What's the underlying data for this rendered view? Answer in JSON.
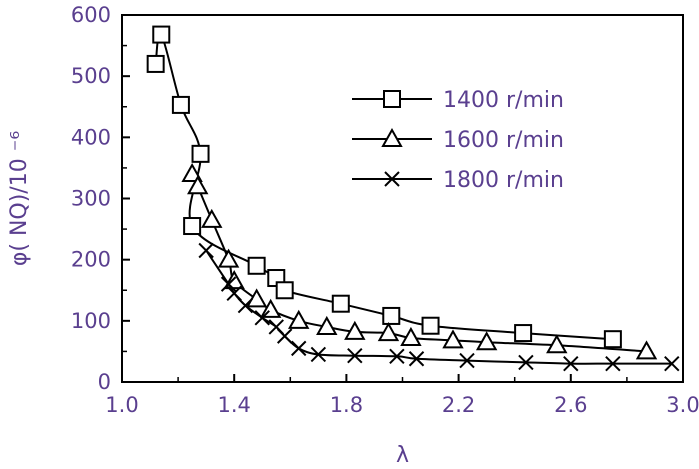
{
  "chart_data": {
    "type": "line",
    "xlabel": "λ",
    "ylabel": "φ( NQ)/10 ⁻⁶",
    "xlim": [
      1.0,
      3.0
    ],
    "ylim": [
      0,
      600
    ],
    "x_ticks": [
      "1.0",
      "1.4",
      "1.8",
      "2.2",
      "2.6",
      "3.0"
    ],
    "y_ticks": [
      "0",
      "100",
      "200",
      "300",
      "400",
      "500",
      "600"
    ],
    "legend_position": "top-right",
    "grid": false,
    "series": [
      {
        "name": "1400 r/min",
        "marker": "square",
        "x": [
          1.12,
          1.14,
          1.21,
          1.28,
          1.25,
          1.48,
          1.55,
          1.58,
          1.78,
          1.96,
          2.1,
          2.43,
          2.75
        ],
        "y": [
          520,
          568,
          453,
          373,
          255,
          190,
          170,
          150,
          128,
          108,
          92,
          80,
          70
        ]
      },
      {
        "name": "1600 r/min",
        "marker": "triangle",
        "x": [
          1.25,
          1.27,
          1.32,
          1.38,
          1.4,
          1.48,
          1.53,
          1.63,
          1.73,
          1.83,
          1.95,
          2.03,
          2.18,
          2.3,
          2.55,
          2.87
        ],
        "y": [
          340,
          320,
          265,
          200,
          165,
          135,
          118,
          100,
          90,
          82,
          80,
          72,
          68,
          65,
          60,
          50
        ]
      },
      {
        "name": "1800 r/min",
        "marker": "x",
        "x": [
          1.3,
          1.38,
          1.4,
          1.44,
          1.5,
          1.55,
          1.58,
          1.63,
          1.7,
          1.83,
          1.98,
          2.05,
          2.23,
          2.44,
          2.6,
          2.75,
          2.96
        ],
        "y": [
          215,
          160,
          145,
          125,
          105,
          90,
          75,
          55,
          45,
          43,
          42,
          38,
          35,
          32,
          30,
          30,
          30
        ]
      }
    ]
  }
}
